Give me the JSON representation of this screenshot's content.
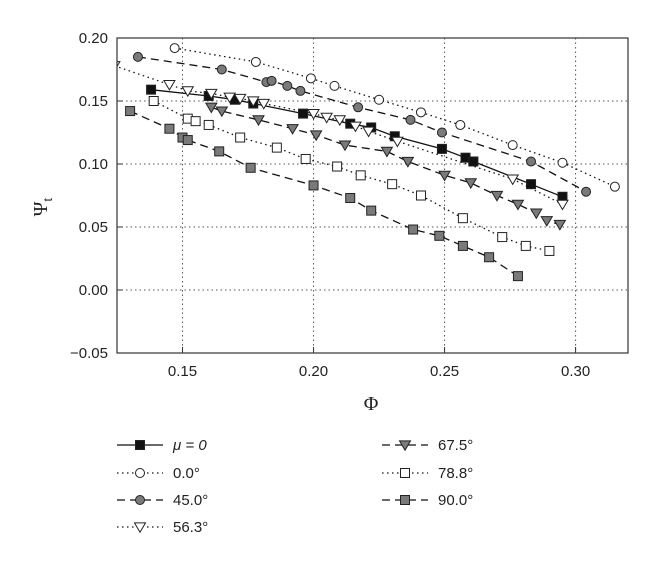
{
  "chart_data": {
    "type": "line",
    "xlabel": "Φ",
    "ylabel": "Ψ",
    "ylabel_sub": "t",
    "xlim": [
      0.125,
      0.32
    ],
    "ylim": [
      -0.05,
      0.2
    ],
    "xticks": [
      0.15,
      0.2,
      0.25,
      0.3
    ],
    "xtick_labels": [
      "0.15",
      "0.20",
      "0.25",
      "0.30"
    ],
    "yticks": [
      -0.05,
      0,
      0.05,
      0.1,
      0.15,
      0.2
    ],
    "ytick_labels": [
      "−0.05",
      "0.00",
      "0.05",
      "0.10",
      "0.15",
      "0.20"
    ],
    "grid": true,
    "legend_position": "bottom",
    "series": [
      {
        "name": "μ = 0",
        "line": "solid",
        "marker": "square",
        "fill": "#111111",
        "x": [
          0.138,
          0.16,
          0.17,
          0.177,
          0.196,
          0.214,
          0.222,
          0.231,
          0.249,
          0.258,
          0.261,
          0.283,
          0.295
        ],
        "y": [
          0.159,
          0.154,
          0.151,
          0.148,
          0.14,
          0.132,
          0.129,
          0.122,
          0.112,
          0.105,
          0.102,
          0.084,
          0.074
        ]
      },
      {
        "name": "0.0°",
        "line": "dotted",
        "marker": "circle",
        "fill": "#ffffff",
        "x": [
          0.147,
          0.178,
          0.199,
          0.208,
          0.225,
          0.241,
          0.256,
          0.276,
          0.295,
          0.315
        ],
        "y": [
          0.192,
          0.181,
          0.168,
          0.162,
          0.151,
          0.141,
          0.131,
          0.115,
          0.101,
          0.082
        ]
      },
      {
        "name": "45.0°",
        "line": "dashed",
        "marker": "circle",
        "fill": "#7a7a7a",
        "x": [
          0.133,
          0.165,
          0.182,
          0.184,
          0.19,
          0.195,
          0.217,
          0.237,
          0.249,
          0.283,
          0.304
        ],
        "y": [
          0.185,
          0.175,
          0.165,
          0.166,
          0.162,
          0.158,
          0.145,
          0.135,
          0.125,
          0.102,
          0.078
        ]
      },
      {
        "name": "56.3°",
        "line": "dotted",
        "marker": "triangle-down",
        "fill": "#ffffff",
        "x": [
          0.124,
          0.145,
          0.152,
          0.161,
          0.168,
          0.172,
          0.177,
          0.181,
          0.2,
          0.205,
          0.21,
          0.216,
          0.221,
          0.232,
          0.276,
          0.295
        ],
        "y": [
          0.178,
          0.163,
          0.158,
          0.156,
          0.153,
          0.152,
          0.15,
          0.148,
          0.14,
          0.137,
          0.135,
          0.13,
          0.126,
          0.118,
          0.088,
          0.068
        ]
      },
      {
        "name": "67.5°",
        "line": "dashed",
        "marker": "triangle-down",
        "fill": "#7a7a7a",
        "x": [
          0.161,
          0.165,
          0.179,
          0.192,
          0.201,
          0.212,
          0.228,
          0.236,
          0.25,
          0.26,
          0.27,
          0.278,
          0.285,
          0.289,
          0.294
        ],
        "y": [
          0.145,
          0.142,
          0.135,
          0.128,
          0.123,
          0.115,
          0.11,
          0.102,
          0.091,
          0.085,
          0.075,
          0.068,
          0.061,
          0.055,
          0.052
        ]
      },
      {
        "name": "78.8°",
        "line": "dotted",
        "marker": "square",
        "fill": "#ffffff",
        "x": [
          0.139,
          0.152,
          0.155,
          0.16,
          0.172,
          0.186,
          0.197,
          0.209,
          0.218,
          0.23,
          0.241,
          0.257,
          0.272,
          0.281,
          0.29
        ],
        "y": [
          0.15,
          0.136,
          0.134,
          0.131,
          0.121,
          0.113,
          0.104,
          0.098,
          0.091,
          0.084,
          0.075,
          0.057,
          0.042,
          0.035,
          0.031
        ]
      },
      {
        "name": "90.0°",
        "line": "dashed",
        "marker": "square",
        "fill": "#7a7a7a",
        "x": [
          0.13,
          0.145,
          0.15,
          0.152,
          0.164,
          0.176,
          0.2,
          0.214,
          0.222,
          0.238,
          0.248,
          0.257,
          0.267,
          0.278
        ],
        "y": [
          0.142,
          0.128,
          0.121,
          0.119,
          0.11,
          0.097,
          0.083,
          0.073,
          0.063,
          0.048,
          0.043,
          0.035,
          0.026,
          0.011
        ]
      }
    ]
  }
}
